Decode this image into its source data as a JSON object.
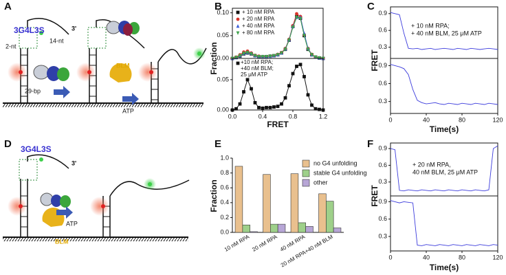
{
  "panel_labels": [
    "A",
    "B",
    "C",
    "D",
    "E",
    "F"
  ],
  "diagrams": {
    "A": {
      "construct": "3G4L3S",
      "end": "3'",
      "overhang": "14-nt",
      "gap": "2-nt",
      "duplex": "29-bp",
      "helicase": "BLM",
      "cofactor": "ATP"
    },
    "D": {
      "construct": "3G4L3S",
      "end": "3'",
      "cofactor": "ATP",
      "helicase": "BLM"
    }
  },
  "chart_data": [
    {
      "type": "line",
      "ylabel": "Fraction",
      "xlim": [
        0,
        1.2
      ],
      "ylim": [
        0,
        0.11
      ],
      "yticks": [
        {
          "value": 0,
          "label": "0.00"
        },
        0.05,
        {
          "value": 0.1,
          "label": "0.10"
        }
      ],
      "x": [
        0,
        0.05,
        0.1,
        0.15,
        0.2,
        0.25,
        0.3,
        0.35,
        0.4,
        0.45,
        0.5,
        0.55,
        0.6,
        0.65,
        0.7,
        0.75,
        0.8,
        0.85,
        0.9,
        0.95,
        1.0,
        1.05,
        1.1,
        1.15,
        1.2
      ],
      "series": [
        {
          "name": "+ 10 nM RPA",
          "color": "#111111",
          "marker": "square",
          "values": [
            0,
            0.002,
            0.005,
            0.01,
            0.012,
            0.01,
            0.006,
            0.004,
            0.004,
            0.004,
            0.005,
            0.006,
            0.008,
            0.012,
            0.02,
            0.04,
            0.07,
            0.092,
            0.088,
            0.05,
            0.02,
            0.008,
            0.003,
            0.001,
            0
          ]
        },
        {
          "name": "+ 20 nM RPA",
          "color": "#d9342b",
          "marker": "circle",
          "values": [
            0,
            0.003,
            0.008,
            0.014,
            0.016,
            0.012,
            0.007,
            0.005,
            0.004,
            0.004,
            0.005,
            0.006,
            0.009,
            0.013,
            0.022,
            0.042,
            0.072,
            0.098,
            0.092,
            0.052,
            0.022,
            0.009,
            0.003,
            0.001,
            0
          ]
        },
        {
          "name": "+ 40 nM RPA",
          "color": "#3b5fd9",
          "marker": "triangle-up",
          "values": [
            0,
            0.002,
            0.006,
            0.011,
            0.013,
            0.011,
            0.006,
            0.004,
            0.004,
            0.004,
            0.005,
            0.006,
            0.008,
            0.012,
            0.021,
            0.041,
            0.07,
            0.09,
            0.09,
            0.055,
            0.022,
            0.008,
            0.003,
            0.001,
            0
          ]
        },
        {
          "name": "+ 80 nM RPA",
          "color": "#3fa34d",
          "marker": "triangle-down",
          "values": [
            0,
            0.002,
            0.006,
            0.011,
            0.013,
            0.01,
            0.006,
            0.004,
            0.004,
            0.004,
            0.005,
            0.006,
            0.008,
            0.012,
            0.02,
            0.04,
            0.068,
            0.09,
            0.087,
            0.05,
            0.02,
            0.008,
            0.003,
            0.001,
            0
          ]
        }
      ]
    },
    {
      "type": "line",
      "xlabel": "FRET",
      "xlim": [
        0,
        1.2
      ],
      "ylim": [
        0,
        0.085
      ],
      "xticks": [
        {
          "value": 0,
          "label": "0.0"
        },
        0.4,
        0.8,
        1.2
      ],
      "yticks": [
        {
          "value": 0,
          "label": "0.00"
        },
        0.05
      ],
      "x": [
        0,
        0.05,
        0.1,
        0.15,
        0.2,
        0.25,
        0.3,
        0.35,
        0.4,
        0.45,
        0.5,
        0.55,
        0.6,
        0.65,
        0.7,
        0.75,
        0.8,
        0.85,
        0.9,
        0.95,
        1.0,
        1.05,
        1.1,
        1.15,
        1.2
      ],
      "series": [
        {
          "name": "+10 nM RPA; +40 nM BLM; 25 μM ATP",
          "color": "#111111",
          "marker": "square",
          "values": [
            0,
            0.002,
            0.01,
            0.03,
            0.05,
            0.035,
            0.012,
            0.004,
            0.003,
            0.004,
            0.004,
            0.005,
            0.006,
            0.01,
            0.02,
            0.04,
            0.06,
            0.072,
            0.075,
            0.055,
            0.025,
            0.008,
            0.002,
            0.001,
            0
          ]
        }
      ]
    },
    {
      "type": "line",
      "annotation": [
        "+ 10 nM RPA;",
        "+ 40 nM BLM, 25 μM ATP"
      ],
      "xlim": [
        0,
        120
      ],
      "ylim": [
        0.1,
        1.02
      ],
      "yticks": [
        0.3,
        0.6,
        0.9
      ],
      "x": [
        0,
        5,
        10,
        15,
        20,
        25,
        30,
        35,
        40,
        45,
        50,
        55,
        60,
        65,
        70,
        75,
        80,
        85,
        90,
        95,
        100,
        105,
        110,
        115,
        120
      ],
      "series": [
        {
          "color": "#3b3bdc",
          "values": [
            0.92,
            0.9,
            0.88,
            0.55,
            0.28,
            0.27,
            0.28,
            0.26,
            0.27,
            0.28,
            0.26,
            0.27,
            0.28,
            0.27,
            0.26,
            0.28,
            0.27,
            0.26,
            0.28,
            0.27,
            0.26,
            0.27,
            0.28,
            0.27,
            0.26
          ]
        }
      ]
    },
    {
      "type": "line",
      "ylabel": "FRET",
      "xlabel": "Time(s)",
      "xlim": [
        0,
        120
      ],
      "ylim": [
        0.1,
        1.02
      ],
      "xticks": [
        0,
        40,
        80,
        120
      ],
      "yticks": [
        0.3,
        0.6,
        0.9
      ],
      "x": [
        0,
        5,
        10,
        15,
        20,
        25,
        30,
        35,
        40,
        45,
        50,
        55,
        60,
        65,
        70,
        75,
        80,
        85,
        90,
        95,
        100,
        105,
        110,
        115,
        120
      ],
      "series": [
        {
          "color": "#3b3bdc",
          "values": [
            0.92,
            0.9,
            0.88,
            0.85,
            0.75,
            0.5,
            0.32,
            0.28,
            0.26,
            0.27,
            0.28,
            0.26,
            0.25,
            0.27,
            0.26,
            0.25,
            0.27,
            0.26,
            0.25,
            0.27,
            0.26,
            0.25,
            0.27,
            0.26,
            0.25
          ]
        }
      ]
    },
    {
      "type": "bar",
      "ylabel": "Fraction",
      "ylim": [
        0,
        1.0
      ],
      "yticks": [
        {
          "value": 0,
          "label": "0.0"
        },
        0.2,
        0.4,
        0.6,
        0.8,
        {
          "value": 1,
          "label": "1.0"
        }
      ],
      "categories": [
        "10 nM RPA",
        "20 nM RPA",
        "40 nM RPA",
        "20 nM RPA+40 nM BLM"
      ],
      "series": [
        {
          "name": "no G4 unfolding",
          "color": "#e9c08e",
          "values": [
            0.89,
            0.78,
            0.79,
            0.52
          ]
        },
        {
          "name": "stable G4 unfolding",
          "color": "#9ed08a",
          "values": [
            0.1,
            0.11,
            0.13,
            0.42
          ]
        },
        {
          "name": "other",
          "color": "#b7a6d6",
          "values": [
            0.01,
            0.11,
            0.08,
            0.06
          ]
        }
      ]
    },
    {
      "type": "line",
      "annotation": [
        "+ 20 nM RPA,",
        "40 nM BLM, 25 μM ATP"
      ],
      "xlim": [
        0,
        120
      ],
      "ylim": [
        0.05,
        1.0
      ],
      "yticks": [
        0.3,
        0.6,
        0.9
      ],
      "x": [
        0,
        5,
        10,
        15,
        20,
        25,
        30,
        35,
        40,
        45,
        50,
        55,
        60,
        65,
        70,
        75,
        80,
        85,
        90,
        95,
        100,
        105,
        110,
        115,
        120
      ],
      "series": [
        {
          "color": "#3b3bdc",
          "values": [
            0.9,
            0.88,
            0.15,
            0.14,
            0.16,
            0.15,
            0.14,
            0.16,
            0.15,
            0.14,
            0.16,
            0.15,
            0.14,
            0.16,
            0.15,
            0.14,
            0.16,
            0.15,
            0.14,
            0.16,
            0.15,
            0.14,
            0.16,
            0.9,
            0.95
          ]
        }
      ]
    },
    {
      "type": "line",
      "ylabel": "FRET",
      "xlabel": "Time(s)",
      "xlim": [
        0,
        120
      ],
      "ylim": [
        0.05,
        1.0
      ],
      "xticks": [
        0,
        40,
        80,
        120
      ],
      "yticks": [
        0.3,
        0.6,
        0.9
      ],
      "x": [
        0,
        5,
        10,
        15,
        20,
        25,
        30,
        35,
        40,
        45,
        50,
        55,
        60,
        65,
        70,
        75,
        80,
        85,
        90,
        95,
        100,
        105,
        110,
        115,
        120
      ],
      "series": [
        {
          "color": "#3b3bdc",
          "values": [
            0.92,
            0.9,
            0.88,
            0.9,
            0.89,
            0.88,
            0.15,
            0.14,
            0.16,
            0.15,
            0.14,
            0.16,
            0.15,
            0.14,
            0.16,
            0.15,
            0.14,
            0.16,
            0.15,
            0.14,
            0.16,
            0.15,
            0.14,
            0.16,
            0.15
          ]
        }
      ]
    }
  ]
}
